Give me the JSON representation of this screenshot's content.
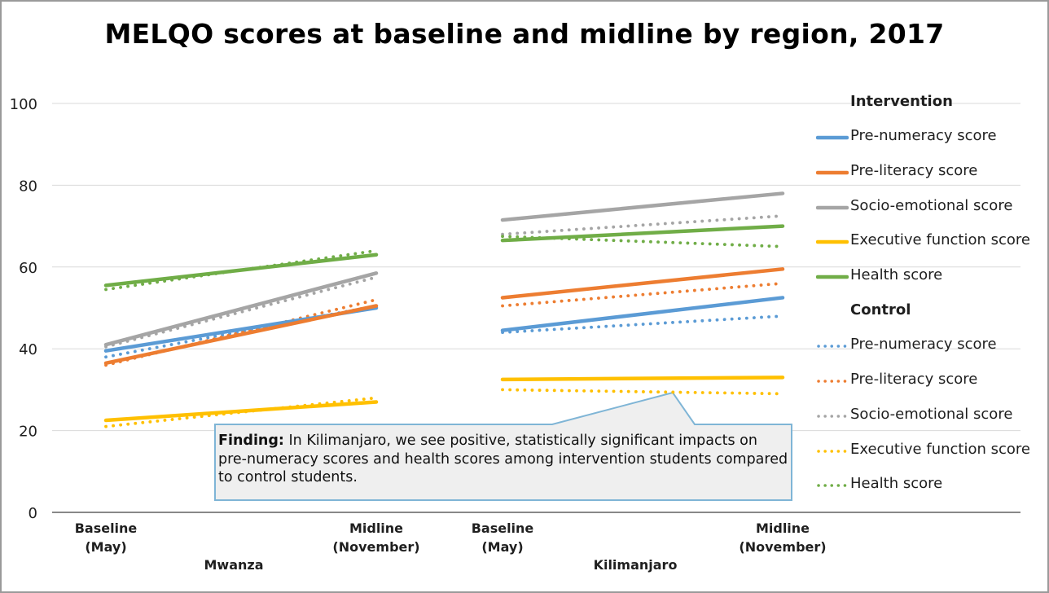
{
  "chart_data": {
    "type": "line",
    "title": "MELQO scores at baseline and midline by region, 2017",
    "ylim": [
      0,
      100
    ],
    "yticks": [
      "0",
      "20",
      "40",
      "60",
      "80",
      "100"
    ],
    "grid": true,
    "legend_position": "right",
    "groups": [
      "Mwanza",
      "Kilimanjaro"
    ],
    "x_labels": [
      [
        "Baseline",
        "(May)"
      ],
      [
        "Midline",
        "(November)"
      ],
      [
        "Baseline",
        "(May)"
      ],
      [
        "Midline",
        "(November)"
      ]
    ],
    "legend_groups": [
      {
        "heading": "Intervention",
        "style": "solid",
        "series": [
          {
            "name": "Pre-numeracy score",
            "color": "#5B9BD5",
            "values": [
              39.5,
              50,
              44.5,
              52.5
            ]
          },
          {
            "name": "Pre-literacy score",
            "color": "#ED7D31",
            "values": [
              36.5,
              50.5,
              52.5,
              59.5
            ]
          },
          {
            "name": "Socio-emotional score",
            "color": "#A5A5A5",
            "values": [
              41,
              58.5,
              71.5,
              78
            ]
          },
          {
            "name": "Executive function score",
            "color": "#FFC000",
            "values": [
              22.5,
              27,
              32.5,
              33
            ]
          },
          {
            "name": "Health score",
            "color": "#70AD47",
            "values": [
              55.5,
              63,
              66.5,
              70
            ]
          }
        ]
      },
      {
        "heading": "Control",
        "style": "dotted",
        "series": [
          {
            "name": "Pre-numeracy score",
            "color": "#5B9BD5",
            "values": [
              38,
              50.5,
              44,
              48
            ]
          },
          {
            "name": "Pre-literacy score",
            "color": "#ED7D31",
            "values": [
              36,
              52,
              50.5,
              56
            ]
          },
          {
            "name": "Socio-emotional score",
            "color": "#A5A5A5",
            "values": [
              40.5,
              57.5,
              68,
              72.5
            ]
          },
          {
            "name": "Executive function score",
            "color": "#FFC000",
            "values": [
              21,
              28,
              30,
              29
            ]
          },
          {
            "name": "Health score",
            "color": "#70AD47",
            "values": [
              54.5,
              64,
              67.5,
              65
            ]
          }
        ]
      }
    ],
    "annotation": {
      "label": "Finding:",
      "text": "In Kilimanjaro, we see positive, statistically significant impacts on pre-numeracy scores and health scores among intervention students compared to control students."
    }
  }
}
